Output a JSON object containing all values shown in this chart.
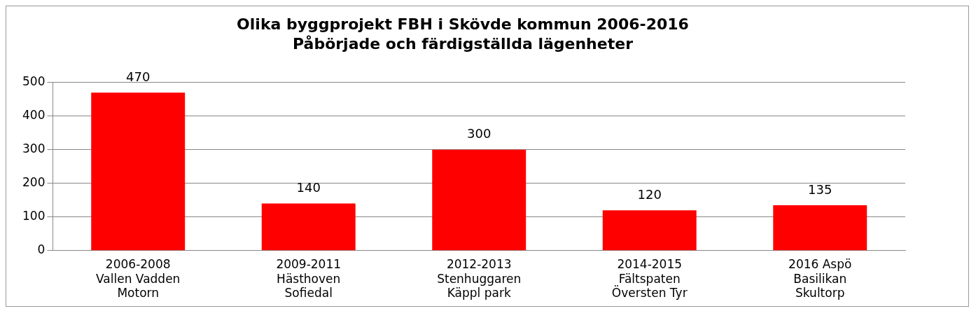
{
  "chart_data": {
    "type": "bar",
    "title": "Olika byggprojekt FBH i Skövde kommun 2006-2016",
    "subtitle": "Påbörjade och färdigställda lägenheter",
    "categories": [
      "2006-2008\nVallen Vadden\nMotorn",
      "2009-2011\nHästhoven\nSofiedal",
      "2012-2013\nStenhuggaren\nKäppl park",
      "2014-2015\nFältspaten\nÖversten Tyr",
      "2016 Aspö\nBasilikan\nSkultorp"
    ],
    "values": [
      470,
      140,
      300,
      120,
      135
    ],
    "color": "#ff0000",
    "ylim": [
      0,
      500
    ],
    "yticks": [
      0,
      100,
      200,
      300,
      400,
      500
    ],
    "grid": "y",
    "data_labels": true
  }
}
